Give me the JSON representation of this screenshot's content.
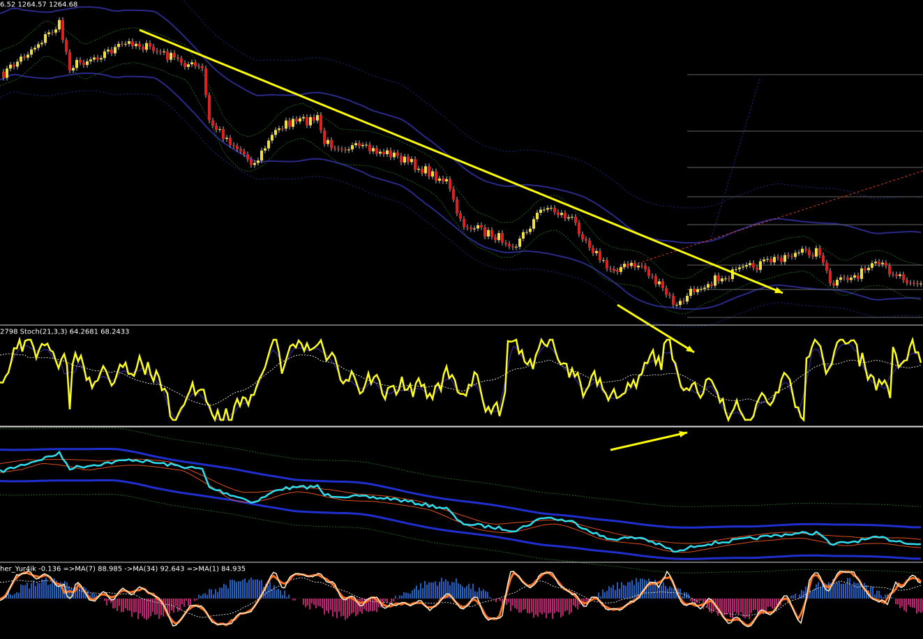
{
  "panels": [
    {
      "label": "6.52 1264.57 1264.68"
    },
    {
      "label": "2798  Stoch(21,3,3) 64.2681 68.2433"
    },
    {
      "label": "her_Yur4ik -0.136  =>MA(7) 88.985  ->MA(34) 92.643  =>MA(1) 84.935"
    }
  ]
}
